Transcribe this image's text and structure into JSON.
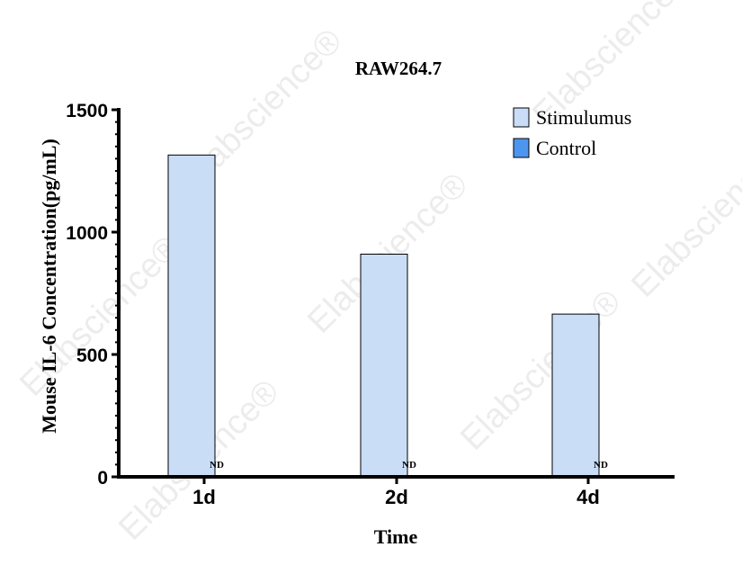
{
  "chart_data": {
    "type": "bar",
    "title": "RAW264.7",
    "xlabel": "Time",
    "ylabel": "Mouse IL-6 Concentration(pg/mL)",
    "categories": [
      "1d",
      "2d",
      "4d"
    ],
    "ylim": [
      0,
      1500
    ],
    "yticks": [
      0,
      500,
      1000,
      1500
    ],
    "series": [
      {
        "name": "Stimulumus",
        "values": [
          1315,
          910,
          665
        ],
        "color": "#c9ddf7"
      },
      {
        "name": "Control",
        "values": [
          0,
          0,
          0
        ],
        "color": "#4d96f0"
      }
    ],
    "annotations": [
      "ND",
      "ND",
      "ND"
    ],
    "legend": "top-right",
    "grid": false
  },
  "watermark": {
    "text": "Elabscience",
    "mark": "®"
  }
}
